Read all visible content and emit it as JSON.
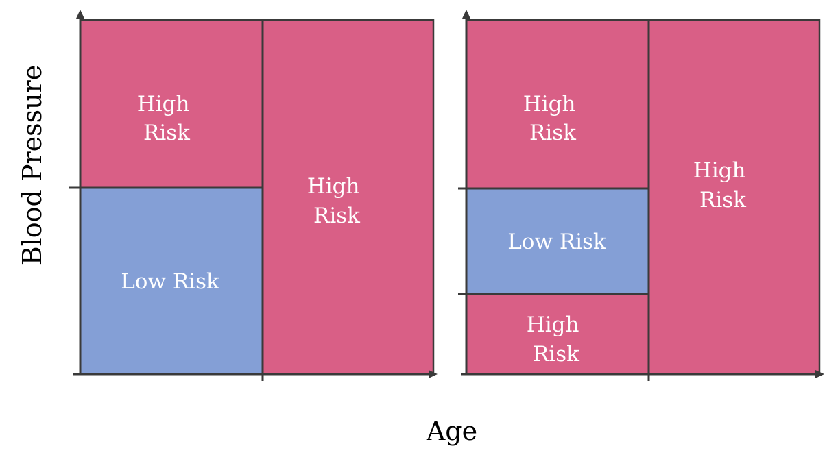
{
  "colors": {
    "high_risk": "#d95f86",
    "low_risk": "#849fd6",
    "axis": "#3a3a3a",
    "label": "#ffffff"
  },
  "axes": {
    "y_title": "Blood Pressure",
    "x_title": "Age"
  },
  "panels": [
    {
      "regions": [
        {
          "risk": "high",
          "lines": [
            "High",
            "Risk"
          ]
        },
        {
          "risk": "low",
          "lines": [
            "Low Risk"
          ]
        },
        {
          "risk": "high",
          "lines": [
            "High",
            "Risk"
          ]
        }
      ]
    },
    {
      "regions": [
        {
          "risk": "high",
          "lines": [
            "High",
            "Risk"
          ]
        },
        {
          "risk": "low",
          "lines": [
            "Low Risk"
          ]
        },
        {
          "risk": "high",
          "lines": [
            "High",
            "Risk"
          ]
        },
        {
          "risk": "high",
          "lines": [
            "High",
            "Risk"
          ]
        }
      ]
    }
  ]
}
